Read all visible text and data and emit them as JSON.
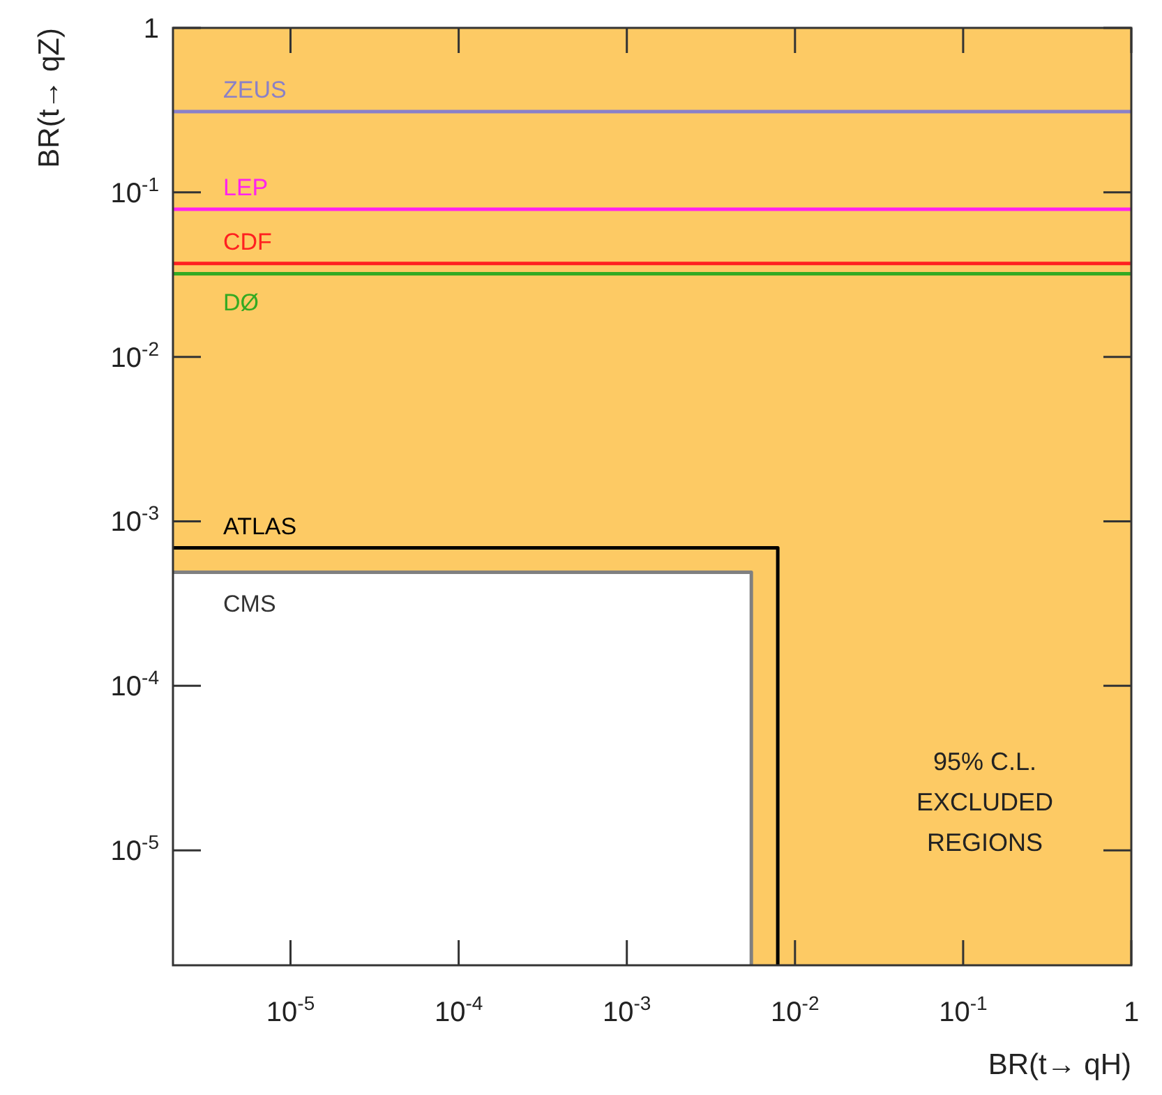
{
  "chart_data": {
    "type": "line",
    "xlabel": "BR(t→ qH)",
    "ylabel": "BR(t→ qZ)",
    "log": "xy",
    "xlim": [
      2e-06,
      1
    ],
    "ylim": [
      2e-06,
      1
    ],
    "xticks": [
      {
        "value": 1e-05,
        "label": "10$^{-5}$"
      },
      {
        "value": 0.0001,
        "label": "10$^{-4}$"
      },
      {
        "value": 0.001,
        "label": "10$^{-3}$"
      },
      {
        "value": 0.01,
        "label": "10$^{-2}$"
      },
      {
        "value": 0.1,
        "label": "10$^{-1}$"
      },
      1
    ],
    "yticks": [
      {
        "value": 1e-05,
        "label": "10$^{-5}$"
      },
      {
        "value": 0.0001,
        "label": "10$^{-4}$"
      },
      {
        "value": 0.001,
        "label": "10$^{-3}$"
      },
      {
        "value": 0.01,
        "label": "10$^{-2}$"
      },
      {
        "value": 0.1,
        "label": "10$^{-1}$"
      },
      1
    ],
    "series": [
      {
        "name": "ATLAS",
        "color": "#000000",
        "x": [
          2e-06,
          0.0079,
          0.0079
        ],
        "values": [
          0.00069,
          0.00069,
          2e-06
        ]
      },
      {
        "name": "CMS",
        "type": "area",
        "color": "#808080",
        "x": [
          2e-06,
          0.0055,
          0.0055
        ],
        "values": [
          0.00049,
          0.00049,
          2e-06
        ]
      }
    ],
    "ref_lines": [
      {
        "axis": "y",
        "value": 0.31,
        "label": "ZEUS",
        "color": "#8a80c8"
      },
      {
        "axis": "y",
        "value": 0.079,
        "label": "LEP",
        "color": "#ff22ee"
      },
      {
        "axis": "y",
        "value": 0.037,
        "label": "CDF",
        "color": "#ff2020"
      },
      {
        "axis": "y",
        "value": 0.032,
        "label": "DØ",
        "color": "#33aa22"
      }
    ],
    "annotations": [
      "95% C.L.\nEXCLUDED REGIONS"
    ],
    "grid": false
  }
}
